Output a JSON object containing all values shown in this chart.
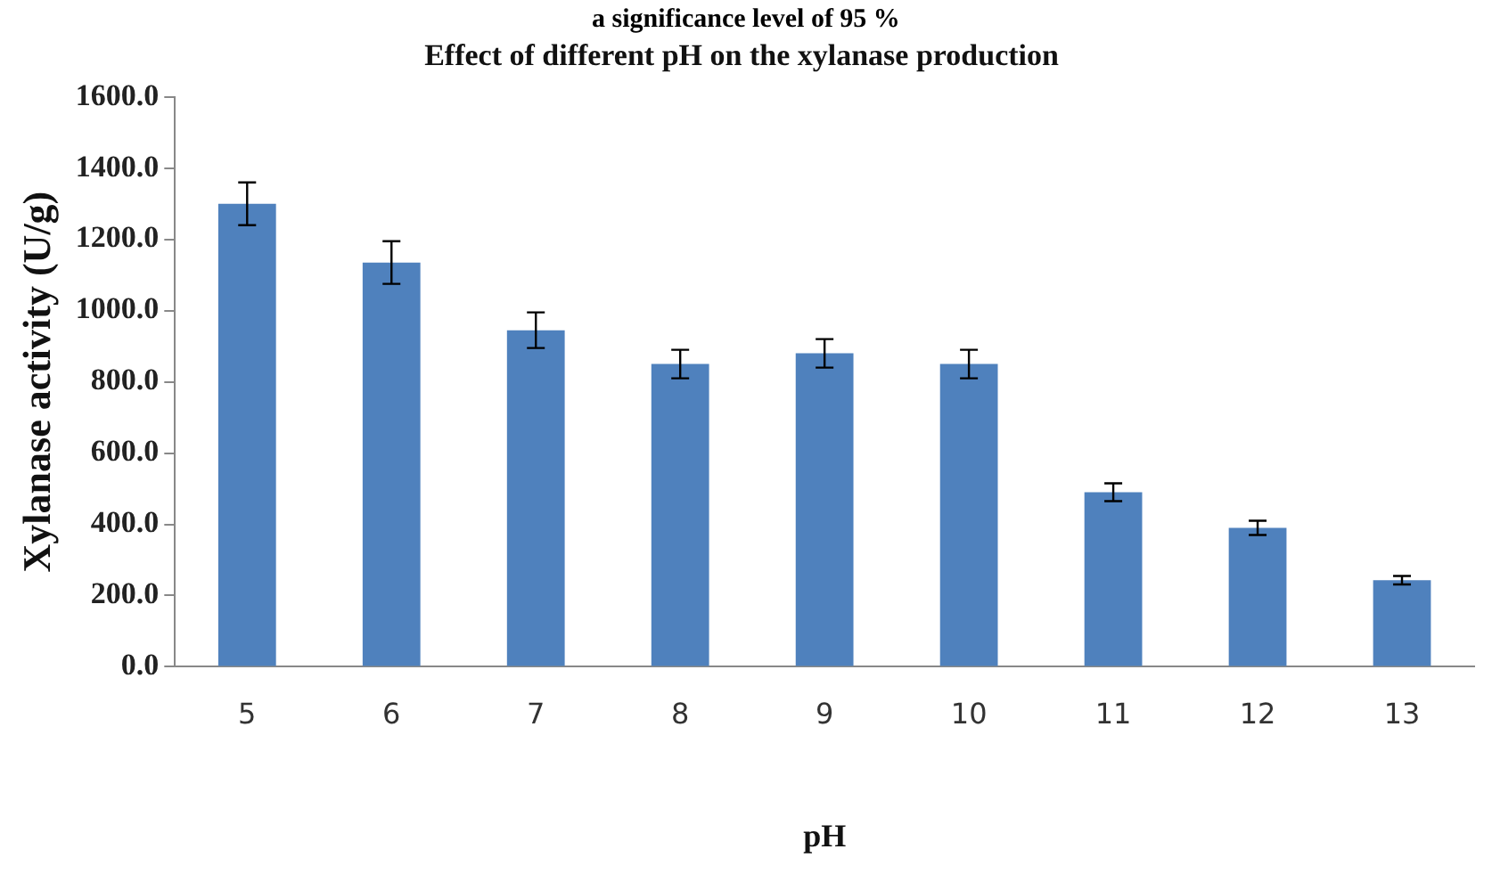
{
  "chart_data": {
    "type": "bar",
    "title": "Effect of different pH on the xylanase production",
    "annotations": [
      "a significance level of 95 %"
    ],
    "xlabel": "pH",
    "ylabel": "Xylanase activity (U/g)",
    "categories": [
      "5",
      "6",
      "7",
      "8",
      "9",
      "10",
      "11",
      "12",
      "13"
    ],
    "values": [
      1300,
      1135,
      945,
      850,
      880,
      850,
      490,
      390,
      243
    ],
    "errors": [
      60,
      60,
      50,
      40,
      40,
      40,
      25,
      20,
      12
    ],
    "color": "#4f81bd",
    "ylim": [
      0,
      1600
    ],
    "yticks": [
      {
        "value": 0,
        "label": "0.0"
      },
      {
        "value": 200,
        "label": "200.0"
      },
      {
        "value": 400,
        "label": "400.0"
      },
      {
        "value": 600,
        "label": "600.0"
      },
      {
        "value": 800,
        "label": "800.0"
      },
      {
        "value": 1000,
        "label": "1000.0"
      },
      {
        "value": 1200,
        "label": "1200.0"
      },
      {
        "value": 1400,
        "label": "1400.0"
      },
      {
        "value": 1600,
        "label": "1600.0"
      }
    ],
    "grid": false,
    "legend": false
  }
}
